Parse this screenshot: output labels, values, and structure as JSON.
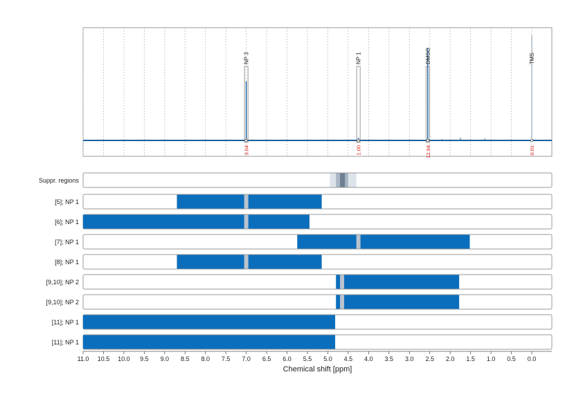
{
  "chart_data": {
    "type": "nmr-spectrum-with-range-bars",
    "x_axis": {
      "label": "Chemical shift [ppm]",
      "range": [
        11.0,
        -0.5
      ],
      "reversed": true,
      "ticks": [
        "11.0",
        "10.5",
        "10.0",
        "9.5",
        "9.0",
        "8.5",
        "8.0",
        "7.5",
        "7.0",
        "6.5",
        "6.0",
        "5.5",
        "5.0",
        "4.5",
        "4.0",
        "3.5",
        "3.0",
        "2.5",
        "2.0",
        "1.5",
        "1.0",
        "0.5",
        "0.0"
      ],
      "grid": "dotted vertical at each tick (spectrum panel)"
    },
    "spectrum": {
      "baseline": true,
      "peaks": [
        {
          "label": "NP 3",
          "ppm": 7.0,
          "intensity": 0.45,
          "integral": "3.04"
        },
        {
          "label": "NP 1",
          "ppm": 4.25,
          "intensity": 0.02,
          "integral": "1.00"
        },
        {
          "label": "DMSO",
          "ppm": 2.55,
          "intensity": 0.7,
          "integral": "12.94"
        },
        {
          "label": "TMS",
          "ppm": 0.0,
          "intensity": 0.8,
          "integral": "0.01"
        }
      ],
      "small_peaks": [
        {
          "ppm": 1.75,
          "intensity": 0.02
        },
        {
          "ppm": 1.15,
          "intensity": 0.015
        },
        {
          "ppm": 2.2,
          "intensity": 0.01
        }
      ]
    },
    "suppression": {
      "label": "Suppr. regions",
      "bands": [
        {
          "from": 4.95,
          "to": 4.3,
          "shade": "light"
        },
        {
          "from": 4.8,
          "to": 4.5,
          "shade": "medium"
        },
        {
          "from": 4.7,
          "to": 4.58,
          "shade": "dark"
        }
      ]
    },
    "rows": [
      {
        "label": "[5]; NP 1",
        "from": 8.7,
        "to": 5.15,
        "notches": [
          7.0
        ]
      },
      {
        "label": "[6]; NP 1",
        "from": 11.0,
        "to": 5.45,
        "notches": [
          7.0
        ]
      },
      {
        "label": "[7]; NP 1",
        "from": 5.75,
        "to": 1.52,
        "notches": [
          4.25
        ]
      },
      {
        "label": "[8]; NP 1",
        "from": 8.7,
        "to": 5.15,
        "notches": [
          7.0
        ]
      },
      {
        "label": "[9,10]; NP 2",
        "from": 4.8,
        "to": 1.78,
        "notches": [
          4.65
        ]
      },
      {
        "label": "[9,10]; NP 2",
        "from": 4.8,
        "to": 1.78,
        "notches": [
          4.65
        ]
      },
      {
        "label": "[11]; NP 1",
        "from": 11.0,
        "to": 4.82,
        "notches": []
      },
      {
        "label": "[11]; NP 1",
        "from": 11.0,
        "to": 4.82,
        "notches": []
      }
    ],
    "colors": {
      "bar": "#0a6ebd",
      "spectrum": "#1a5f9e",
      "integral": "#e0201b",
      "notch": "#b8c3ce",
      "suppr_light": "#dde3ea",
      "suppr_medium": "#a9b6c3",
      "suppr_dark": "#6d7f90",
      "frame": "#9a9a9a",
      "grid": "#bdbdbd"
    }
  }
}
